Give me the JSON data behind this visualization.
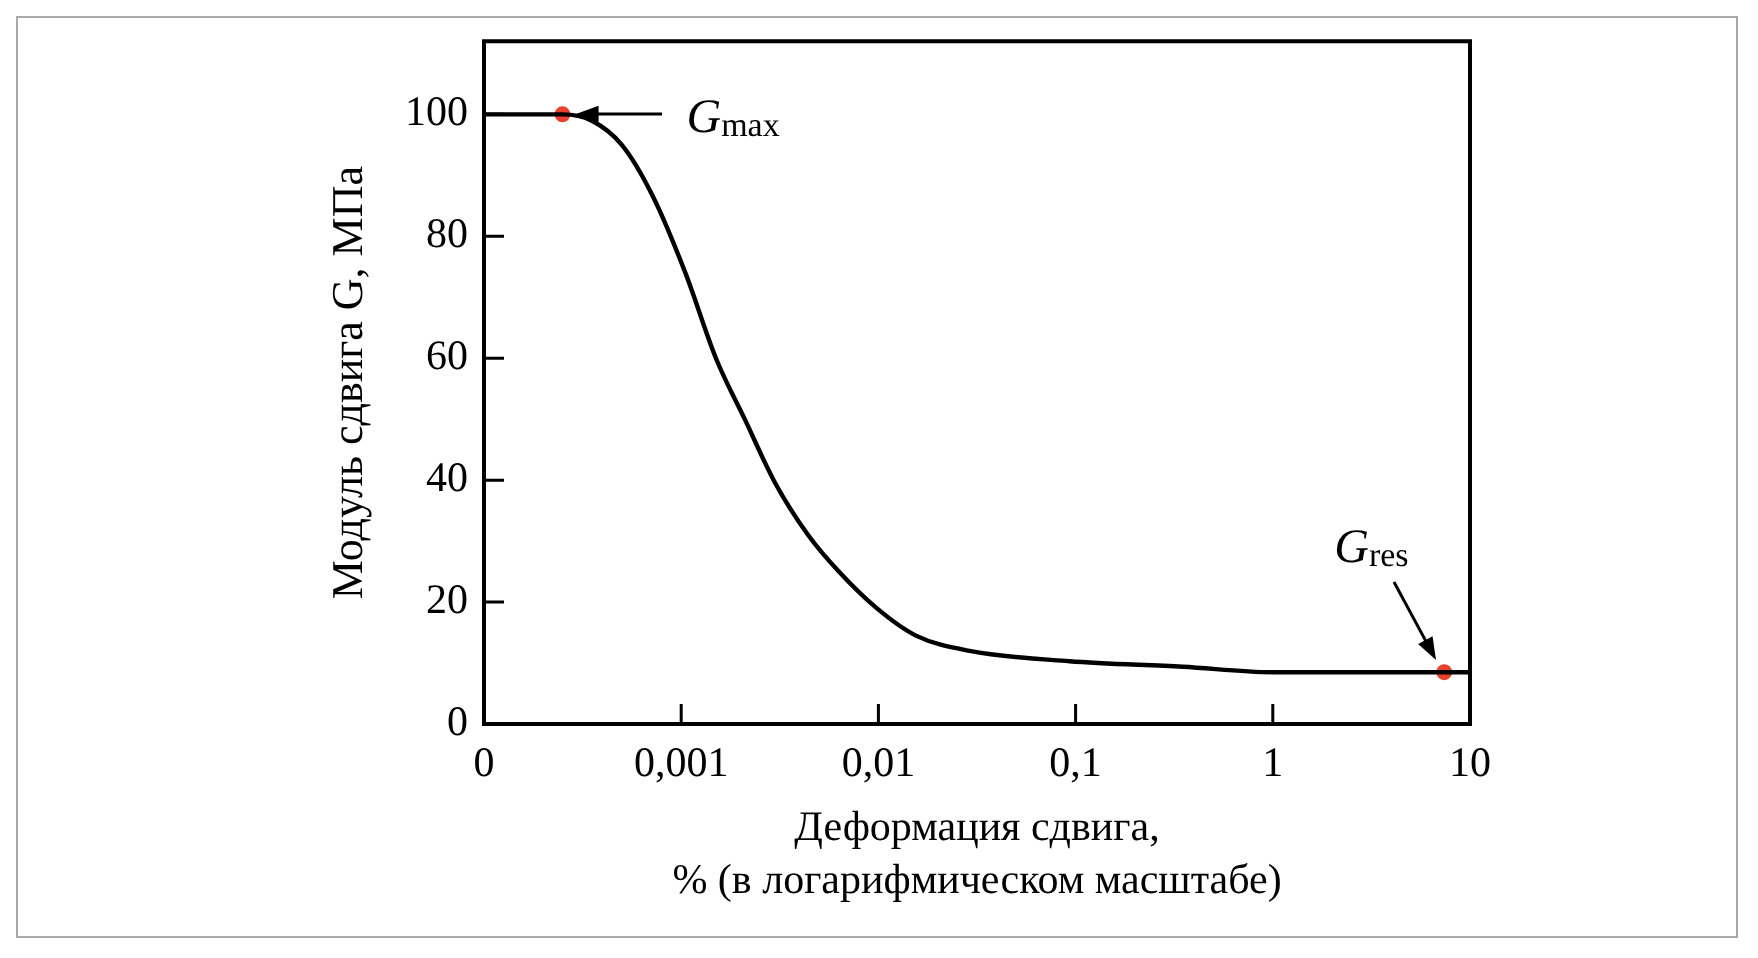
{
  "chart_data": {
    "type": "line",
    "xlabel": "Деформация сдвига,\n% (в логарифмическом масштабе)",
    "ylabel": "Модуль сдвига G, МПа",
    "log": "x",
    "xlim": [
      0.0001,
      10
    ],
    "xticks": [
      {
        "value": 0.0001,
        "label": "0"
      },
      {
        "value": 0.001,
        "label": "0,001"
      },
      {
        "value": 0.01,
        "label": "0,01"
      },
      {
        "value": 0.1,
        "label": "0,1"
      },
      {
        "value": 1,
        "label": "1"
      },
      {
        "value": 10,
        "label": "10"
      }
    ],
    "ylim": [
      0,
      112
    ],
    "yticks": [
      0,
      20,
      40,
      60,
      80,
      100
    ],
    "grid": false,
    "legend": false,
    "marker": "none",
    "line_style": "solid",
    "series": [
      {
        "color": "#000000",
        "x": [
          0.0001,
          0.00025,
          0.00035,
          0.0005,
          0.00072,
          0.00105,
          0.0015,
          0.0021,
          0.003,
          0.0044,
          0.0063,
          0.0098,
          0.0155,
          0.029,
          0.093,
          0.35,
          1,
          7.4,
          10
        ],
        "values": [
          100,
          100,
          99,
          95,
          86.5,
          74,
          60,
          50,
          39.5,
          31,
          25,
          19,
          14.5,
          12,
          10.3,
          9.4,
          8.5,
          8.5,
          8.5
        ]
      },
      {
        "type": "scatter",
        "color": "#e8412c",
        "marker": "circle",
        "x": [
          0.00025,
          7.4
        ],
        "values": [
          100,
          8.5
        ]
      }
    ],
    "annotations": [
      {
        "text": "G$_{max}$",
        "x": 0.00025,
        "y": 100
      },
      {
        "text": "G$_{res}$",
        "x": 7.4,
        "y": 8.5
      }
    ]
  }
}
